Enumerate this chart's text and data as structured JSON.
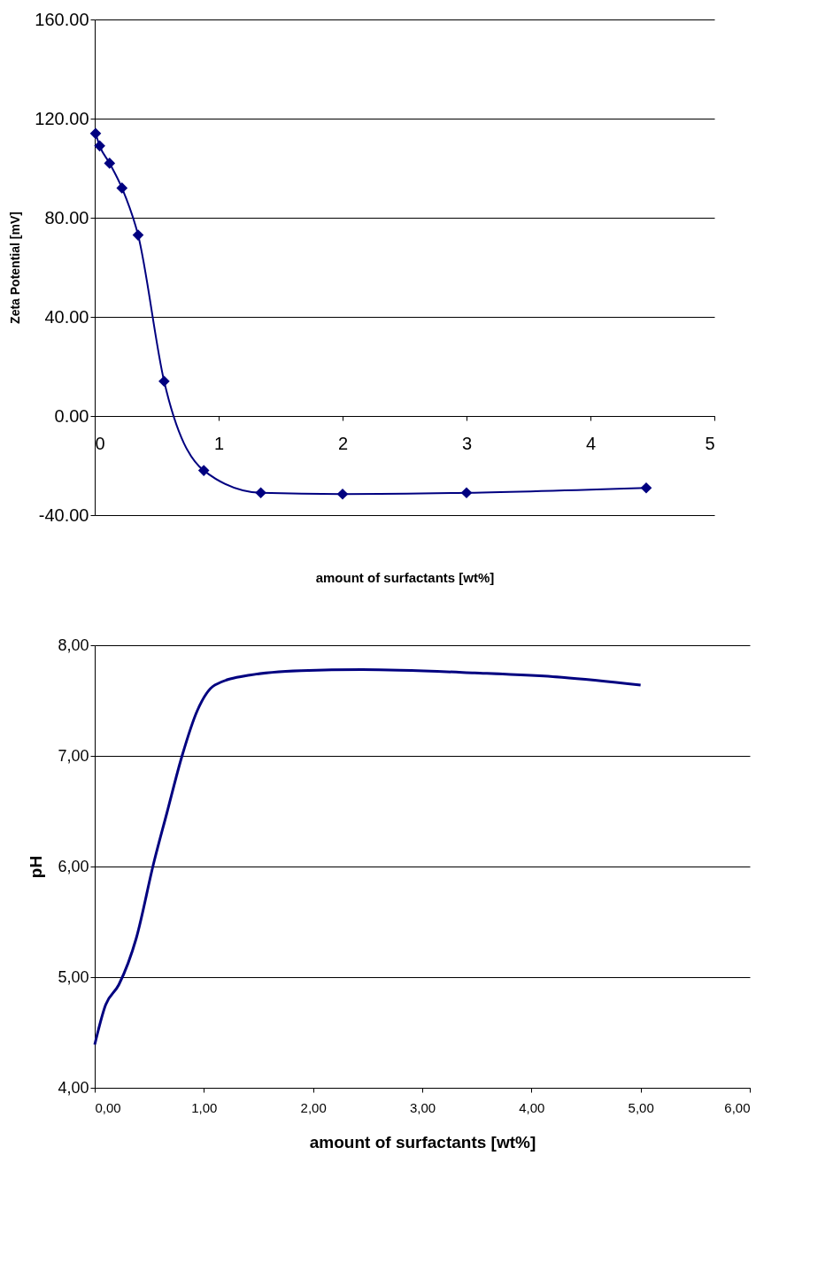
{
  "chart_data": [
    {
      "type": "line",
      "xlabel": "amount of surfactants  [wt%]",
      "ylabel": "Zeta Potential [mV]",
      "marker": "diamond",
      "grid": "y",
      "xlim": [
        0,
        5
      ],
      "xticks": [
        0,
        1,
        2,
        3,
        4,
        5
      ],
      "ylim": [
        -40,
        160
      ],
      "yticks": [
        {
          "value": -40,
          "label": "-40.00"
        },
        {
          "value": 0,
          "label": "0.00"
        },
        {
          "value": 40,
          "label": "40.00"
        },
        {
          "value": 80,
          "label": "80.00"
        },
        {
          "value": 120,
          "label": "120.00"
        },
        {
          "value": 160,
          "label": "160.00"
        }
      ],
      "series": [
        {
          "color": "#000080",
          "x": [
            0.007,
            0.04,
            0.12,
            0.22,
            0.35,
            0.56,
            0.88,
            1.34,
            2.0,
            3.0,
            4.45
          ],
          "values": [
            114,
            109,
            102,
            92,
            73,
            14,
            -22,
            -31,
            -31.5,
            -31,
            -29
          ]
        }
      ]
    },
    {
      "type": "line",
      "xlabel": "amount of surfactants [wt%]",
      "ylabel": "pH",
      "marker": "none",
      "grid": "y",
      "xlim": [
        0,
        6
      ],
      "xticks": [
        {
          "value": 0,
          "label": "0,00"
        },
        {
          "value": 1,
          "label": "1,00"
        },
        {
          "value": 2,
          "label": "2,00"
        },
        {
          "value": 3,
          "label": "3,00"
        },
        {
          "value": 4,
          "label": "4,00"
        },
        {
          "value": 5,
          "label": "5,00"
        },
        {
          "value": 6,
          "label": "6,00"
        }
      ],
      "ylim": [
        4,
        8
      ],
      "yticks": [
        {
          "value": 4,
          "label": "4,00"
        },
        {
          "value": 5,
          "label": "5,00"
        },
        {
          "value": 6,
          "label": "6,00"
        },
        {
          "value": 7,
          "label": "7,00"
        },
        {
          "value": 8,
          "label": "8,00"
        }
      ],
      "series": [
        {
          "color": "#000080",
          "x": [
            0,
            0.1,
            0.22,
            0.38,
            0.54,
            0.66,
            0.8,
            0.94,
            1.1,
            1.42,
            1.89,
            2.45,
            3.48,
            4.28,
            5.0
          ],
          "values": [
            4.39,
            4.75,
            4.93,
            5.35,
            6.03,
            6.48,
            7.0,
            7.41,
            7.64,
            7.73,
            7.77,
            7.78,
            7.75,
            7.71,
            7.64
          ]
        }
      ]
    }
  ]
}
